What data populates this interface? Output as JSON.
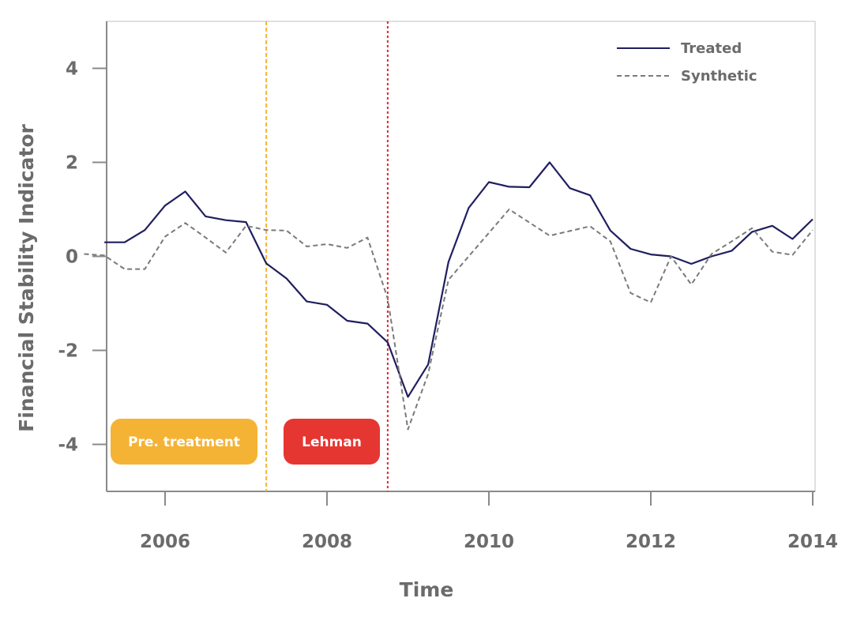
{
  "chart_data": {
    "type": "line",
    "xlabel": "Time",
    "ylabel": "Financial Stability Indicator",
    "xlim": [
      2005.25,
      2014.0
    ],
    "ylim": [
      -5,
      5
    ],
    "x_ticks": [
      2006,
      2008,
      2010,
      2012,
      2014
    ],
    "y_ticks": [
      -4,
      -2,
      0,
      2,
      4
    ],
    "grid": false,
    "legend_position": "top-right",
    "series": [
      {
        "name": "Treated",
        "color": "#1f1f5f",
        "style": "solid",
        "points": [
          [
            2005.25,
            0.3
          ],
          [
            2005.5,
            0.3
          ],
          [
            2005.75,
            0.56
          ],
          [
            2006.0,
            1.08
          ],
          [
            2006.25,
            1.38
          ],
          [
            2006.5,
            0.85
          ],
          [
            2006.75,
            0.77
          ],
          [
            2007.0,
            0.73
          ],
          [
            2007.25,
            -0.15
          ],
          [
            2007.5,
            -0.47
          ],
          [
            2007.75,
            -0.96
          ],
          [
            2008.0,
            -1.03
          ],
          [
            2008.25,
            -1.37
          ],
          [
            2008.5,
            -1.43
          ],
          [
            2008.75,
            -1.83
          ],
          [
            2009.0,
            -2.99
          ],
          [
            2009.25,
            -2.3
          ],
          [
            2009.5,
            -0.12
          ],
          [
            2009.75,
            1.03
          ],
          [
            2010.0,
            1.58
          ],
          [
            2010.25,
            1.48
          ],
          [
            2010.5,
            1.47
          ],
          [
            2010.75,
            2.0
          ],
          [
            2011.0,
            1.45
          ],
          [
            2011.25,
            1.3
          ],
          [
            2011.5,
            0.55
          ],
          [
            2011.75,
            0.16
          ],
          [
            2012.0,
            0.04
          ],
          [
            2012.25,
            0.0
          ],
          [
            2012.5,
            -0.16
          ],
          [
            2012.75,
            0.0
          ],
          [
            2013.0,
            0.12
          ],
          [
            2013.25,
            0.52
          ],
          [
            2013.5,
            0.65
          ],
          [
            2013.75,
            0.37
          ],
          [
            2014.0,
            0.79
          ]
        ]
      },
      {
        "name": "Synthetic",
        "color": "#7a7a7a",
        "style": "dashed",
        "points": [
          [
            2005.0,
            0.05
          ],
          [
            2005.25,
            0.02
          ],
          [
            2005.5,
            -0.27
          ],
          [
            2005.75,
            -0.27
          ],
          [
            2006.0,
            0.42
          ],
          [
            2006.25,
            0.71
          ],
          [
            2006.5,
            0.4
          ],
          [
            2006.75,
            0.08
          ],
          [
            2007.0,
            0.65
          ],
          [
            2007.25,
            0.56
          ],
          [
            2007.5,
            0.55
          ],
          [
            2007.75,
            0.21
          ],
          [
            2008.0,
            0.26
          ],
          [
            2008.25,
            0.18
          ],
          [
            2008.5,
            0.4
          ],
          [
            2008.75,
            -0.9
          ],
          [
            2009.0,
            -3.68
          ],
          [
            2009.25,
            -2.5
          ],
          [
            2009.5,
            -0.5
          ],
          [
            2009.75,
            0.0
          ],
          [
            2010.0,
            0.5
          ],
          [
            2010.25,
            1.0
          ],
          [
            2010.5,
            0.72
          ],
          [
            2010.75,
            0.44
          ],
          [
            2011.0,
            0.54
          ],
          [
            2011.25,
            0.64
          ],
          [
            2011.5,
            0.32
          ],
          [
            2011.75,
            -0.78
          ],
          [
            2012.0,
            -0.98
          ],
          [
            2012.25,
            0.0
          ],
          [
            2012.5,
            -0.6
          ],
          [
            2012.75,
            0.05
          ],
          [
            2013.0,
            0.32
          ],
          [
            2013.25,
            0.6
          ],
          [
            2013.5,
            0.1
          ],
          [
            2013.75,
            0.03
          ],
          [
            2014.0,
            0.56
          ]
        ]
      }
    ],
    "vlines": [
      {
        "x": 2007.25,
        "color": "#f5b335",
        "style": "dashed"
      },
      {
        "x": 2008.75,
        "color": "#e0282e",
        "style": "dotted"
      }
    ],
    "annotations": [
      {
        "text": "Pre. treatment",
        "color": "#f5b335"
      },
      {
        "text": "Lehman",
        "color": "#e63631"
      }
    ]
  }
}
